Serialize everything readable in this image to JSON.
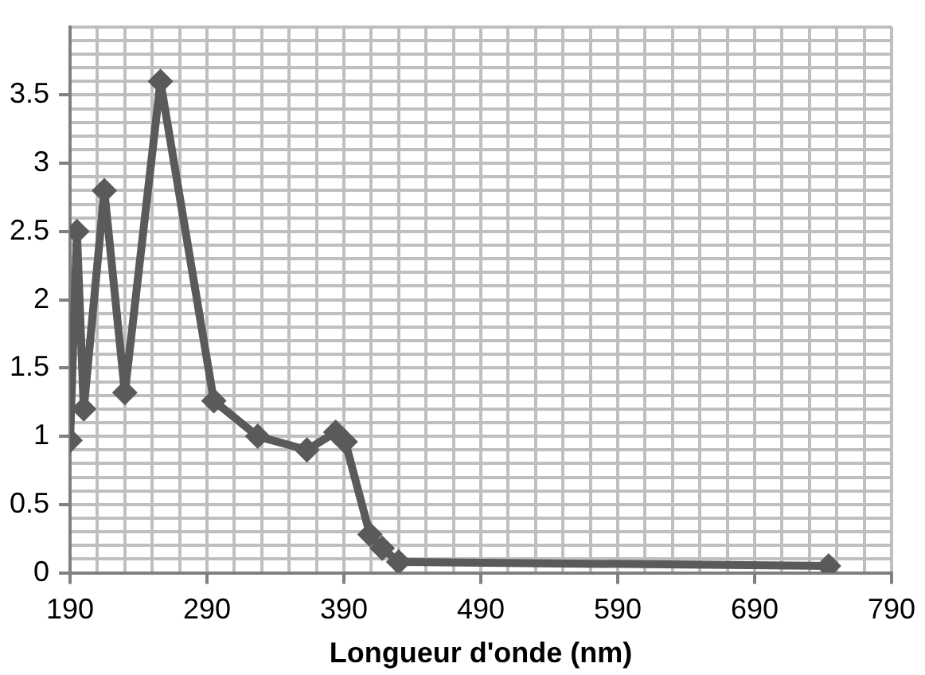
{
  "chart_data": {
    "type": "line",
    "xlabel": "Longueur d'onde (nm)",
    "x": [
      190,
      195,
      200,
      215,
      230,
      256,
      295,
      327,
      363,
      384,
      391,
      409,
      418,
      430,
      744
    ],
    "series": [
      {
        "color": "#5a5a5a",
        "values": [
          0.97,
          2.5,
          1.2,
          2.8,
          1.32,
          3.6,
          1.26,
          1.0,
          0.9,
          1.03,
          0.96,
          0.28,
          0.18,
          0.08,
          0.05
        ]
      }
    ],
    "xlim": [
      190,
      790
    ],
    "xticks": [
      190,
      {
        "value": 210,
        "label": null
      },
      {
        "value": 230,
        "label": null
      },
      {
        "value": 250,
        "label": null
      },
      {
        "value": 270,
        "label": null
      },
      290,
      {
        "value": 310,
        "label": null
      },
      {
        "value": 330,
        "label": null
      },
      {
        "value": 350,
        "label": null
      },
      {
        "value": 370,
        "label": null
      },
      390,
      {
        "value": 410,
        "label": null
      },
      {
        "value": 430,
        "label": null
      },
      {
        "value": 450,
        "label": null
      },
      {
        "value": 470,
        "label": null
      },
      490,
      {
        "value": 510,
        "label": null
      },
      {
        "value": 530,
        "label": null
      },
      {
        "value": 550,
        "label": null
      },
      {
        "value": 570,
        "label": null
      },
      590,
      {
        "value": 610,
        "label": null
      },
      {
        "value": 630,
        "label": null
      },
      {
        "value": 650,
        "label": null
      },
      {
        "value": 670,
        "label": null
      },
      690,
      {
        "value": 710,
        "label": null
      },
      {
        "value": 730,
        "label": null
      },
      {
        "value": 750,
        "label": null
      },
      {
        "value": 770,
        "label": null
      },
      790
    ],
    "ylim": [
      0,
      4
    ],
    "yticks": [
      0,
      {
        "value": 0.1,
        "label": null
      },
      {
        "value": 0.2,
        "label": null
      },
      {
        "value": 0.3,
        "label": null
      },
      {
        "value": 0.4,
        "label": null
      },
      0.5,
      {
        "value": 0.6,
        "label": null
      },
      {
        "value": 0.7,
        "label": null
      },
      {
        "value": 0.8,
        "label": null
      },
      {
        "value": 0.9,
        "label": null
      },
      1,
      {
        "value": 1.1,
        "label": null
      },
      {
        "value": 1.2,
        "label": null
      },
      {
        "value": 1.3,
        "label": null
      },
      {
        "value": 1.4,
        "label": null
      },
      1.5,
      {
        "value": 1.6,
        "label": null
      },
      {
        "value": 1.7,
        "label": null
      },
      {
        "value": 1.8,
        "label": null
      },
      {
        "value": 1.9,
        "label": null
      },
      2,
      {
        "value": 2.1,
        "label": null
      },
      {
        "value": 2.2,
        "label": null
      },
      {
        "value": 2.3,
        "label": null
      },
      {
        "value": 2.4,
        "label": null
      },
      2.5,
      {
        "value": 2.6,
        "label": null
      },
      {
        "value": 2.7,
        "label": null
      },
      {
        "value": 2.8,
        "label": null
      },
      {
        "value": 2.9,
        "label": null
      },
      3,
      {
        "value": 3.1,
        "label": null
      },
      {
        "value": 3.2,
        "label": null
      },
      {
        "value": 3.3,
        "label": null
      },
      {
        "value": 3.4,
        "label": null
      },
      3.5,
      {
        "value": 3.6,
        "label": null
      },
      {
        "value": 3.7,
        "label": null
      },
      {
        "value": 3.8,
        "label": null
      },
      {
        "value": 3.9,
        "label": null
      },
      {
        "value": 4,
        "label": null
      }
    ],
    "grid": true,
    "legend": false,
    "marker": "diamond",
    "line_style": "solid"
  }
}
